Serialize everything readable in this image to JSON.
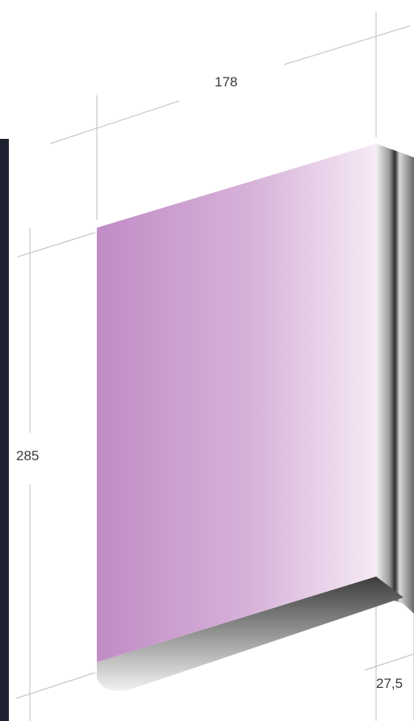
{
  "dimensions": {
    "width": "178",
    "height": "285",
    "depth": "27,5"
  },
  "colors": {
    "panel_left": "#c18cc6",
    "panel_mid": "#d6b2d9",
    "panel_right": "#f6eaf5",
    "edge_dark": "#3c3c3c",
    "edge_light": "#f2f2f2",
    "wall": "#1e2230",
    "dimension_line": "#c8c8c8"
  }
}
